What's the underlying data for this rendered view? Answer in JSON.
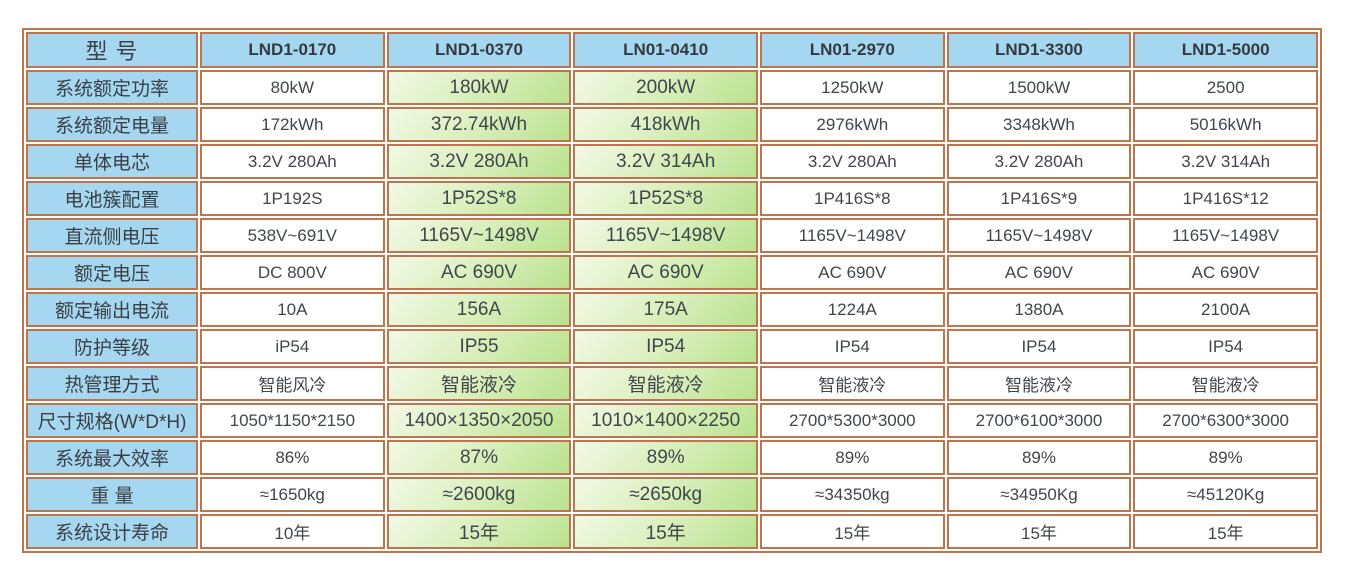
{
  "table": {
    "corner_label": "型 号",
    "models": [
      "LND1-0170",
      "LND1-0370",
      "LN01-0410",
      "LN01-2970",
      "LND1-3300",
      "LND1-5000"
    ],
    "highlighted_models": [
      "LND1-0370",
      "LN01-0410"
    ],
    "rows": [
      {
        "label": "系统额定功率",
        "values": [
          "80kW",
          "180kW",
          "200kW",
          "1250kW",
          "1500kW",
          "2500"
        ]
      },
      {
        "label": "系统额定电量",
        "values": [
          "172kWh",
          "372.74kWh",
          "418kWh",
          "2976kWh",
          "3348kWh",
          "5016kWh"
        ]
      },
      {
        "label": "单体电芯",
        "values": [
          "3.2V 280Ah",
          "3.2V 280Ah",
          "3.2V 314Ah",
          "3.2V 280Ah",
          "3.2V 280Ah",
          "3.2V 314Ah"
        ]
      },
      {
        "label": "电池簇配置",
        "values": [
          "1P192S",
          "1P52S*8",
          "1P52S*8",
          "1P416S*8",
          "1P416S*9",
          "1P416S*12"
        ]
      },
      {
        "label": "直流侧电压",
        "values": [
          "538V~691V",
          "1165V~1498V",
          "1165V~1498V",
          "1165V~1498V",
          "1165V~1498V",
          "1165V~1498V"
        ]
      },
      {
        "label": "额定电压",
        "values": [
          "DC 800V",
          "AC 690V",
          "AC 690V",
          "AC 690V",
          "AC 690V",
          "AC 690V"
        ]
      },
      {
        "label": "额定输出电流",
        "values": [
          "10A",
          "156A",
          "175A",
          "1224A",
          "1380A",
          "2100A"
        ]
      },
      {
        "label": "防护等级",
        "values": [
          "iP54",
          "IP55",
          "IP54",
          "IP54",
          "IP54",
          "IP54"
        ]
      },
      {
        "label": "热管理方式",
        "values": [
          "智能风冷",
          "智能液冷",
          "智能液冷",
          "智能液冷",
          "智能液冷",
          "智能液冷"
        ]
      },
      {
        "label": "尺寸规格(W*D*H)",
        "values": [
          "1050*1150*2150",
          "1400×1350×2050",
          "1010×1400×2250",
          "2700*5300*3000",
          "2700*6100*3000",
          "2700*6300*3000"
        ]
      },
      {
        "label": "系统最大效率",
        "values": [
          "86%",
          "87%",
          "89%",
          "89%",
          "89%",
          "89%"
        ]
      },
      {
        "label": "重 量",
        "values": [
          "≈1650kg",
          "≈2600kg",
          "≈2650kg",
          "≈34350kg",
          "≈34950Kg",
          "≈45120Kg"
        ]
      },
      {
        "label": "系统设计寿命",
        "values": [
          "10年",
          "15年",
          "15年",
          "15年",
          "15年",
          "15年"
        ]
      }
    ],
    "colors": {
      "header_bg": "#a6d7f0",
      "highlight_gradient_start": "#f1f9e6",
      "highlight_gradient_end": "#b9e28e",
      "border": "#c0744c",
      "text": "#3c4147"
    }
  }
}
